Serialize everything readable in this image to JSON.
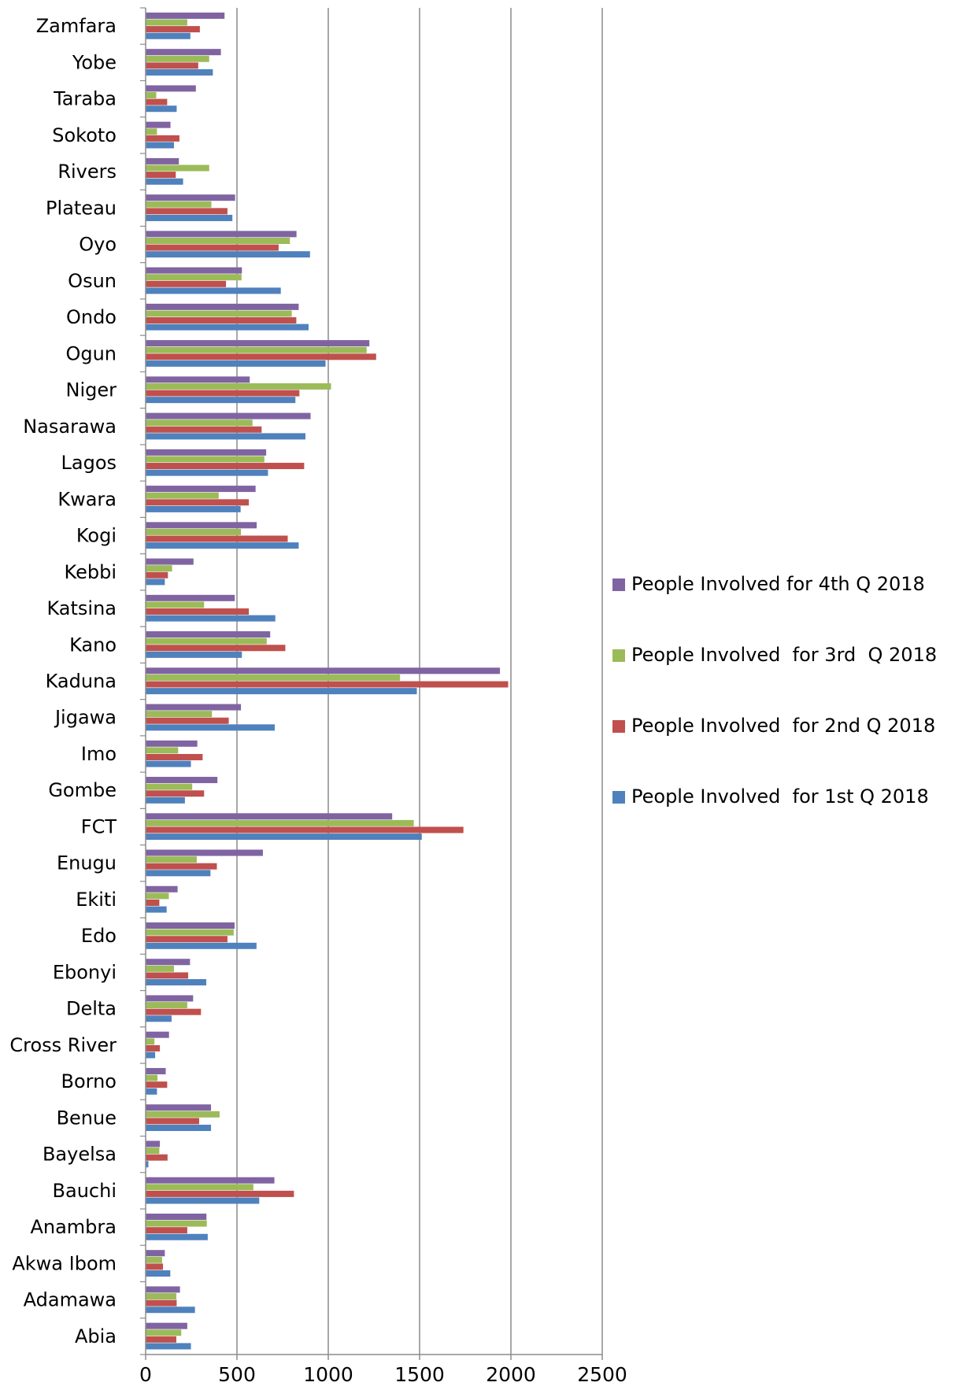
{
  "chart_data": {
    "type": "bar",
    "orientation": "horizontal",
    "categories": [
      "Abia",
      "Adamawa",
      "Akwa Ibom",
      "Anambra",
      "Bauchi",
      "Bayelsa",
      "Benue",
      "Borno",
      "Cross River",
      "Delta",
      "Ebonyi",
      "Edo",
      "Ekiti",
      "Enugu",
      "FCT",
      "Gombe",
      "Imo",
      "Jigawa",
      "Kaduna",
      "Kano",
      "Katsina",
      "Kebbi",
      "Kogi",
      "Kwara",
      "Lagos",
      "Nasarawa",
      "Niger",
      "Ogun",
      "Ondo",
      "Osun",
      "Oyo",
      "Plateau",
      "Rivers",
      "Sokoto",
      "Taraba",
      "Yobe",
      "Zamfara"
    ],
    "series": [
      {
        "name": "People Involved  for 1st Q 2018",
        "color": "#4f81bd",
        "values": [
          248,
          270,
          135,
          340,
          622,
          15,
          358,
          62,
          52,
          142,
          332,
          607,
          115,
          355,
          1512,
          215,
          248,
          707,
          1485,
          527,
          710,
          105,
          838,
          520,
          670,
          875,
          820,
          985,
          892,
          740,
          900,
          475,
          205,
          155,
          170,
          368,
          245
        ]
      },
      {
        "name": "People Involved  for 2nd Q 2018",
        "color": "#c0504d",
        "values": [
          168,
          170,
          95,
          228,
          812,
          120,
          293,
          118,
          78,
          303,
          233,
          448,
          75,
          390,
          1740,
          320,
          312,
          455,
          1985,
          765,
          565,
          122,
          778,
          565,
          868,
          635,
          842,
          1262,
          825,
          440,
          728,
          448,
          165,
          185,
          118,
          288,
          297
        ]
      },
      {
        "name": "People Involved  for 3rd  Q 2018",
        "color": "#9bbb59",
        "values": [
          195,
          168,
          90,
          335,
          590,
          75,
          405,
          65,
          48,
          228,
          155,
          482,
          127,
          280,
          1468,
          255,
          178,
          363,
          1393,
          663,
          320,
          145,
          522,
          400,
          650,
          585,
          1015,
          1210,
          800,
          525,
          790,
          360,
          348,
          62,
          58,
          348,
          228
        ]
      },
      {
        "name": "People Involved for 4th Q 2018",
        "color": "#8064a2",
        "values": [
          228,
          188,
          105,
          333,
          705,
          78,
          358,
          110,
          128,
          260,
          243,
          487,
          175,
          642,
          1350,
          393,
          283,
          522,
          1940,
          682,
          488,
          262,
          608,
          602,
          660,
          903,
          570,
          1225,
          838,
          527,
          826,
          490,
          182,
          136,
          275,
          412,
          432
        ]
      }
    ],
    "xlim": [
      0,
      2500
    ],
    "xticks": [
      "0",
      "500",
      "1000",
      "1500",
      "2000",
      "2500"
    ],
    "grid": true,
    "legend": "right"
  }
}
